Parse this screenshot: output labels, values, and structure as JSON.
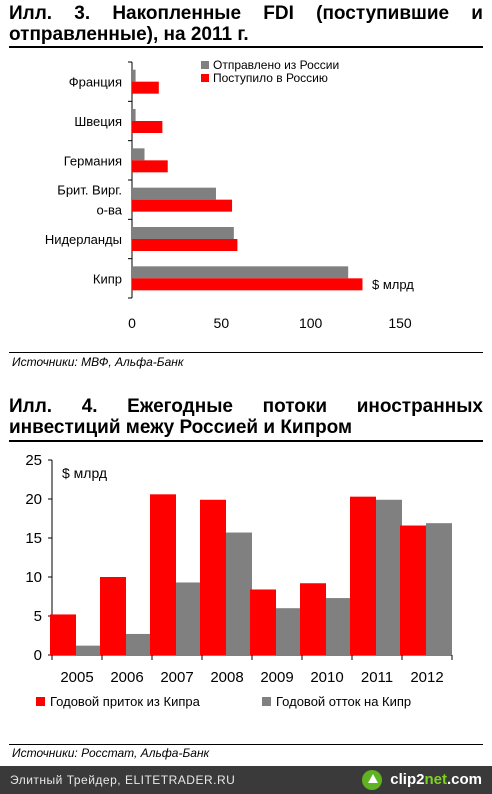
{
  "chart3": {
    "title_line1": "Илл. 3. Накопленные FDI (поступившие и",
    "title_line2": "отправленные), на 2011 г.",
    "source": "Источники: МВФ, Альфа-Банк",
    "unit_label": "$ млрд"
  },
  "chart4": {
    "title_line1": "Илл. 4. Ежегодные потоки иностранных",
    "title_line2": "инвестиций межу Россией и Кипром",
    "source": "Источники: Росстат, Альфа-Банк",
    "unit_label": "$ млрд"
  },
  "footer": {
    "text": "Элитный Трейдер, ELITETRADER.RU",
    "logo_main": "clip2",
    "logo_accent": "net",
    "logo_suffix": ".com"
  },
  "colors": {
    "red": "#ff0000",
    "gray": "#808080"
  },
  "chart_data": [
    {
      "type": "bar",
      "orientation": "horizontal",
      "categories": [
        "Франция",
        "Швеция",
        "Германия",
        "Брит. Вирг. о-ва",
        "Нидерланды",
        "Кипр"
      ],
      "category_lines": [
        [
          "Франция"
        ],
        [
          "Швеция"
        ],
        [
          "Германия"
        ],
        [
          "Брит. Вирг.",
          "о-ва"
        ],
        [
          "Нидерланды"
        ],
        [
          "Кипр"
        ]
      ],
      "series": [
        {
          "name": "Отправлено из России",
          "color": "#808080",
          "values": [
            2,
            2,
            7,
            47,
            57,
            121
          ]
        },
        {
          "name": "Поступило в Россию",
          "color": "#ff0000",
          "values": [
            15,
            17,
            20,
            56,
            59,
            129
          ]
        }
      ],
      "xlim": [
        0,
        150
      ],
      "xticks": [
        "0",
        "50",
        "100",
        "150"
      ],
      "grid": false,
      "legend_position": "top-right"
    },
    {
      "type": "bar",
      "orientation": "vertical",
      "categories": [
        "2005",
        "2006",
        "2007",
        "2008",
        "2009",
        "2010",
        "2011",
        "2012"
      ],
      "series": [
        {
          "name": "Годовой приток из Кипра",
          "color": "#ff0000",
          "values": [
            5.2,
            10.0,
            20.6,
            19.9,
            8.4,
            9.2,
            20.3,
            16.6
          ]
        },
        {
          "name": "Годовой отток на Кипр",
          "color": "#808080",
          "values": [
            1.2,
            2.7,
            9.3,
            15.7,
            6.0,
            7.3,
            19.9,
            16.9
          ]
        }
      ],
      "ylim": [
        0,
        25
      ],
      "yticks": [
        "0",
        "5",
        "10",
        "15",
        "20",
        "25"
      ],
      "grid": false,
      "legend_position": "bottom"
    }
  ]
}
